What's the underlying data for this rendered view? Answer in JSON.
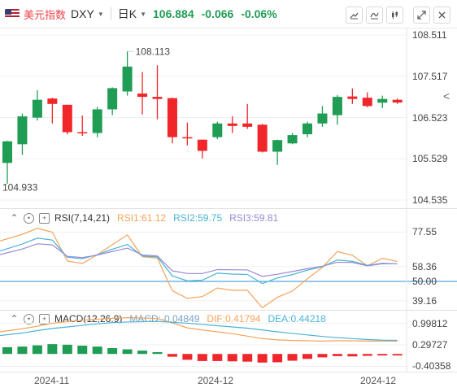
{
  "header": {
    "name": "美元指数",
    "symbol": "DXY",
    "period": "日K",
    "price": "106.884",
    "change": "-0.066",
    "change_pct": "-0.06%"
  },
  "toolbar": {
    "icons": [
      "draw-icon",
      "indicator-icon",
      "candle-type-icon",
      "expand-icon",
      "close-icon"
    ]
  },
  "side_toggle_label": "<",
  "main": {
    "y_labels": [
      "108.511",
      "107.517",
      "106.523",
      "105.529",
      "104.535"
    ],
    "high_marker": "108.113",
    "low_marker": "104.933"
  },
  "rsi": {
    "title": "RSI(7,14,21)",
    "rsi1": "RSI1:61.12",
    "rsi2": "RSI2:59.75",
    "rsi3": "RSI3:59.81",
    "y_labels": [
      "77.55",
      "58.36",
      "50.00",
      "39.16"
    ]
  },
  "macd": {
    "title": "MACD(12,26,9)",
    "macd": "MACD:-0.04849",
    "dif": "DIF:0.41794",
    "dea": "DEA:0.44218",
    "y_labels": [
      "0.99812",
      "0.29727",
      "-0.40358"
    ]
  },
  "x_labels": [
    "2024-11",
    "2024-12",
    "2024-12"
  ],
  "colors": {
    "up": "#1f9d55",
    "down": "#f0262b",
    "rsi1": "#f5a35a",
    "rsi2": "#4ab3d4",
    "rsi3": "#9b8ad6",
    "ref": "#2b8fd9"
  },
  "chart_data": [
    {
      "type": "candlestick",
      "ylim": [
        104.535,
        108.511
      ],
      "y_ticks": [
        108.511,
        107.517,
        106.523,
        105.529,
        104.535
      ],
      "candles": [
        {
          "o": 105.43,
          "c": 105.95,
          "h": 105.96,
          "l": 104.933
        },
        {
          "o": 105.88,
          "c": 106.55,
          "h": 106.62,
          "l": 105.62
        },
        {
          "o": 106.52,
          "c": 106.95,
          "h": 107.18,
          "l": 106.45
        },
        {
          "o": 106.98,
          "c": 106.85,
          "h": 107.0,
          "l": 106.38
        },
        {
          "o": 106.83,
          "c": 106.17,
          "h": 106.83,
          "l": 106.12
        },
        {
          "o": 106.17,
          "c": 106.15,
          "h": 106.57,
          "l": 106.08
        },
        {
          "o": 106.15,
          "c": 106.72,
          "h": 106.78,
          "l": 106.05
        },
        {
          "o": 106.72,
          "c": 107.23,
          "h": 107.25,
          "l": 106.58
        },
        {
          "o": 107.15,
          "c": 107.75,
          "h": 108.113,
          "l": 107.05
        },
        {
          "o": 107.1,
          "c": 107.02,
          "h": 107.62,
          "l": 106.6
        },
        {
          "o": 107.02,
          "c": 106.97,
          "h": 107.78,
          "l": 106.48
        },
        {
          "o": 106.99,
          "c": 106.05,
          "h": 107.0,
          "l": 105.9
        },
        {
          "o": 106.05,
          "c": 106.02,
          "h": 106.4,
          "l": 105.85
        },
        {
          "o": 105.99,
          "c": 105.72,
          "h": 105.99,
          "l": 105.54
        },
        {
          "o": 106.05,
          "c": 106.38,
          "h": 106.42,
          "l": 106.0
        },
        {
          "o": 106.38,
          "c": 106.32,
          "h": 106.55,
          "l": 106.15
        },
        {
          "o": 106.38,
          "c": 106.3,
          "h": 106.85,
          "l": 106.25
        },
        {
          "o": 106.35,
          "c": 105.7,
          "h": 106.37,
          "l": 105.68
        },
        {
          "o": 105.7,
          "c": 105.98,
          "h": 105.99,
          "l": 105.38
        },
        {
          "o": 105.9,
          "c": 106.1,
          "h": 106.15,
          "l": 105.88
        },
        {
          "o": 106.12,
          "c": 106.38,
          "h": 106.42,
          "l": 106.05
        },
        {
          "o": 106.38,
          "c": 106.62,
          "h": 106.8,
          "l": 106.3
        },
        {
          "o": 106.58,
          "c": 107.02,
          "h": 107.06,
          "l": 106.35
        },
        {
          "o": 107.03,
          "c": 106.97,
          "h": 107.22,
          "l": 106.85
        },
        {
          "o": 107.0,
          "c": 106.8,
          "h": 107.13,
          "l": 106.77
        },
        {
          "o": 106.88,
          "c": 106.97,
          "h": 107.05,
          "l": 106.75
        },
        {
          "o": 106.95,
          "c": 106.884,
          "h": 106.98,
          "l": 106.85
        }
      ]
    },
    {
      "type": "line",
      "title": "RSI(7,14,21)",
      "ylim": [
        35,
        85
      ],
      "y_ticks": [
        77.55,
        58.36,
        50.0,
        39.16
      ],
      "series": [
        {
          "name": "RSI1",
          "color": "#f5a35a",
          "values": [
            72.6,
            76.3,
            79.7,
            77.5,
            61.4,
            60.0,
            64.9,
            70.5,
            76.0,
            63.8,
            63.0,
            44.8,
            40.5,
            41.5,
            46.3,
            45.0,
            45.0,
            35.3,
            41.1,
            44.6,
            51.5,
            57.8,
            66.7,
            64.6,
            58.7,
            62.9,
            61.1
          ]
        },
        {
          "name": "RSI2",
          "color": "#4ab3d4",
          "values": [
            67.0,
            70.9,
            74.2,
            73.1,
            63.5,
            62.7,
            64.9,
            68.0,
            70.6,
            64.2,
            63.7,
            53.1,
            50.3,
            50.7,
            54.6,
            54.1,
            53.9,
            48.8,
            51.9,
            53.8,
            56.3,
            58.2,
            62.0,
            61.2,
            59.0,
            60.1,
            59.75
          ]
        },
        {
          "name": "RSI3",
          "color": "#9b8ad6",
          "values": [
            65.0,
            68.1,
            71.0,
            70.4,
            64.0,
            63.3,
            64.7,
            66.7,
            68.6,
            64.8,
            64.2,
            55.9,
            54.4,
            54.4,
            56.6,
            56.5,
            56.4,
            52.8,
            54.0,
            55.5,
            57.1,
            58.5,
            60.7,
            60.6,
            58.7,
            59.9,
            59.81
          ]
        }
      ],
      "reference_line": 50.0
    },
    {
      "type": "bar",
      "title": "MACD(12,26,9)",
      "ylim": [
        -0.55,
        1.25
      ],
      "y_ticks": [
        0.99812,
        0.29727,
        -0.40358
      ],
      "histogram": [
        0.22,
        0.24,
        0.28,
        0.32,
        0.3,
        0.27,
        0.24,
        0.19,
        0.15,
        0.11,
        0.06,
        -0.09,
        -0.19,
        -0.23,
        -0.23,
        -0.24,
        -0.25,
        -0.28,
        -0.27,
        -0.22,
        -0.16,
        -0.11,
        -0.07,
        -0.08,
        -0.06,
        -0.05,
        -0.04849
      ],
      "series": [
        {
          "name": "DIF",
          "color": "#f5a35a",
          "values": [
            0.72,
            0.82,
            0.9,
            1.0,
            1.05,
            1.1,
            1.13,
            1.16,
            1.18,
            1.17,
            1.15,
            1.01,
            0.85,
            0.78,
            0.72,
            0.66,
            0.58,
            0.5,
            0.46,
            0.44,
            0.43,
            0.42,
            0.43,
            0.43,
            0.42,
            0.42,
            0.41794
          ]
        },
        {
          "name": "DEA",
          "color": "#4ab3d4",
          "values": [
            0.6,
            0.68,
            0.76,
            0.83,
            0.88,
            0.93,
            0.98,
            1.02,
            1.04,
            1.05,
            1.06,
            1.03,
            1.0,
            0.96,
            0.92,
            0.88,
            0.84,
            0.78,
            0.72,
            0.67,
            0.62,
            0.57,
            0.53,
            0.5,
            0.47,
            0.45,
            0.44218
          ]
        }
      ]
    }
  ]
}
